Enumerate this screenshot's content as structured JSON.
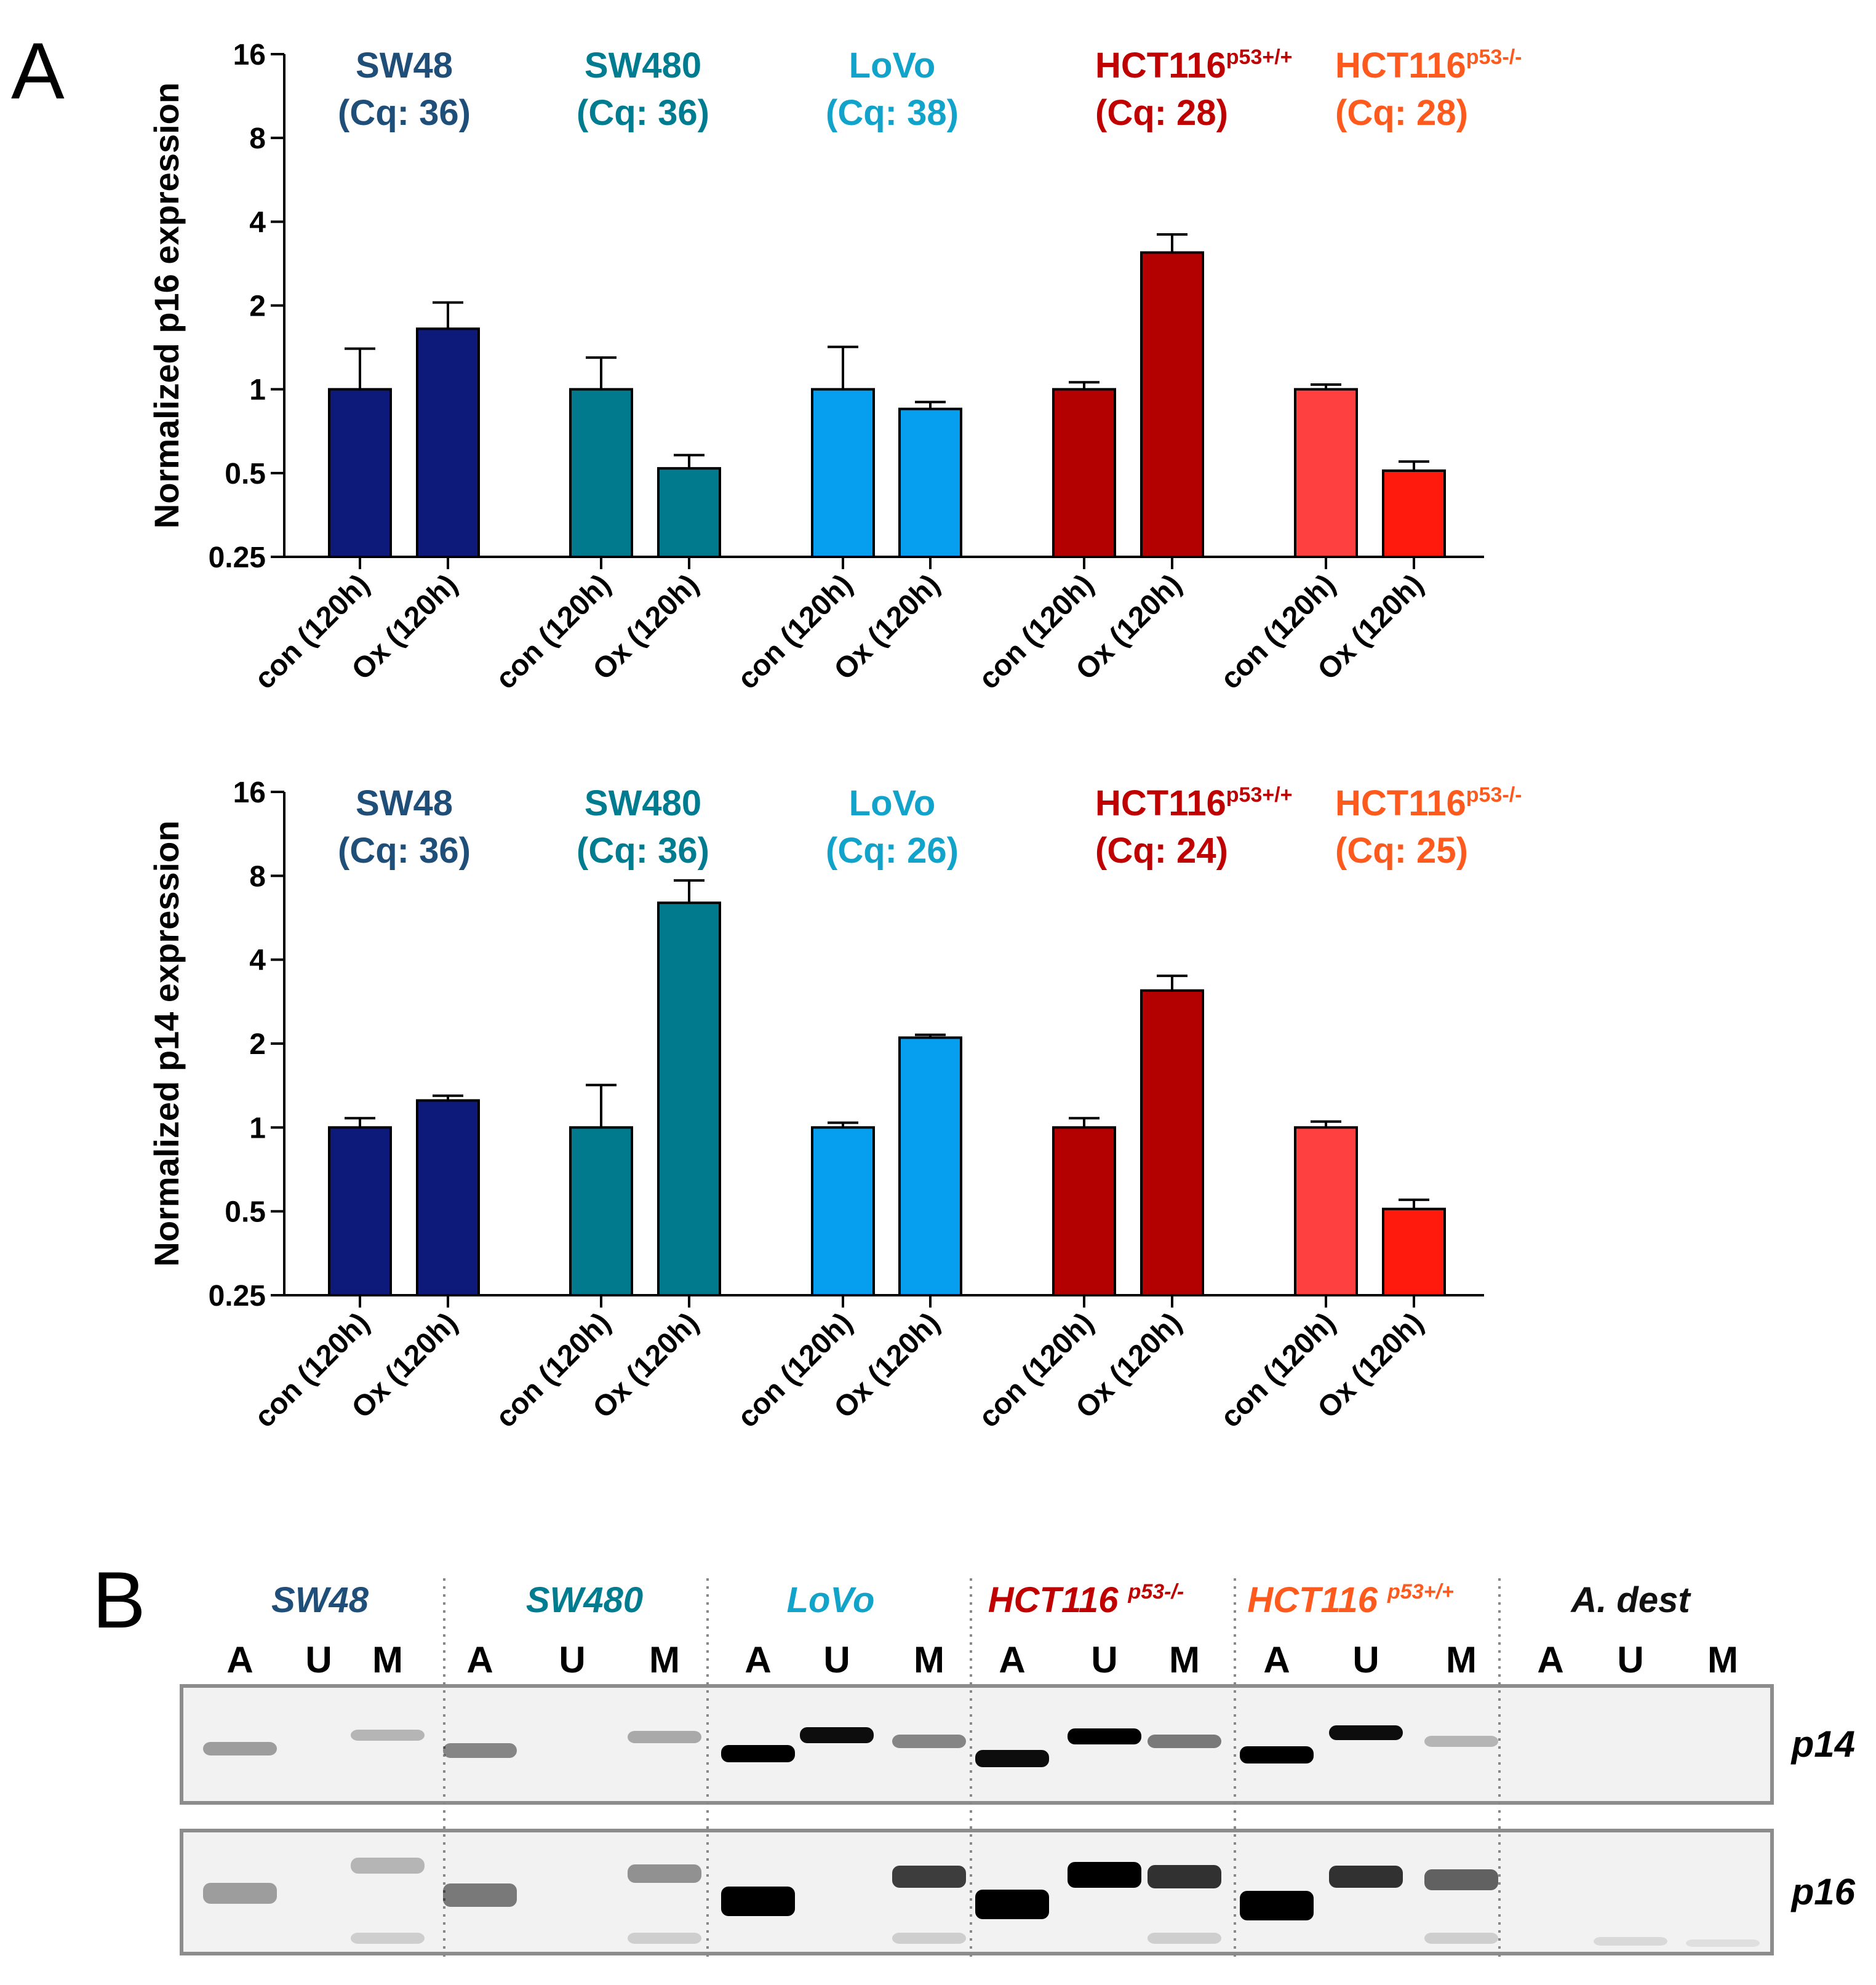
{
  "panel_a_letter": "A",
  "panel_b_letter": "B",
  "colors": {
    "SW48": "#0d1a7a",
    "SW480": "#007a8c",
    "LoVo": "#069ff0",
    "HCT116_wt": "#b30000",
    "HCT116_ko": "#ff4040",
    "HCT116_ko_ox": "#ff1a0d",
    "label_SW48": "#1f4e79",
    "label_SW480": "#007c91",
    "label_LoVo": "#11a3c9",
    "label_HCT_wt": "#c00000",
    "label_HCT_ko": "#ff5a1e"
  },
  "chart_data": [
    {
      "type": "bar",
      "title": "",
      "ylabel": "Normalized p16 expression",
      "yscale": "log2",
      "ylim": [
        0.25,
        16
      ],
      "yticks": [
        "0.25",
        "0.5",
        "1",
        "2",
        "4",
        "8",
        "16"
      ],
      "yticks_values": [
        0.25,
        0.5,
        1,
        2,
        4,
        8,
        16
      ],
      "categories": [
        "con (120h)",
        "Ox (120h)",
        "con (120h)",
        "Ox (120h)",
        "con (120h)",
        "Ox (120h)",
        "con (120h)",
        "Ox (120h)",
        "con (120h)",
        "Ox (120h)"
      ],
      "values": [
        1.0,
        1.65,
        1.0,
        0.52,
        1.0,
        0.85,
        1.0,
        3.1,
        1.0,
        0.51
      ],
      "errors_upper": [
        1.4,
        2.05,
        1.3,
        0.58,
        1.42,
        0.9,
        1.06,
        3.6,
        1.04,
        0.55
      ],
      "group_labels": [
        {
          "name": "SW48",
          "sup": "",
          "cq": "(Cq: 36)"
        },
        {
          "name": "SW480",
          "sup": "",
          "cq": "(Cq: 36)"
        },
        {
          "name": "LoVo",
          "sup": "",
          "cq": "(Cq: 38)"
        },
        {
          "name": "HCT116",
          "sup": "p53+/+",
          "cq": "(Cq: 28)"
        },
        {
          "name": "HCT116",
          "sup": "p53-/-",
          "cq": "(Cq: 28)"
        }
      ]
    },
    {
      "type": "bar",
      "title": "",
      "ylabel": "Normalized p14 expression",
      "yscale": "log2",
      "ylim": [
        0.25,
        16
      ],
      "yticks": [
        "0.25",
        "0.5",
        "1",
        "2",
        "4",
        "8",
        "16"
      ],
      "yticks_values": [
        0.25,
        0.5,
        1,
        2,
        4,
        8,
        16
      ],
      "categories": [
        "con (120h)",
        "Ox (120h)",
        "con (120h)",
        "Ox (120h)",
        "con (120h)",
        "Ox (120h)",
        "con (120h)",
        "Ox (120h)",
        "con (120h)",
        "Ox (120h)"
      ],
      "values": [
        1.0,
        1.25,
        1.0,
        6.4,
        1.0,
        2.1,
        1.0,
        3.1,
        1.0,
        0.51
      ],
      "errors_upper": [
        1.08,
        1.3,
        1.42,
        7.7,
        1.04,
        2.15,
        1.08,
        3.5,
        1.05,
        0.55
      ],
      "group_labels": [
        {
          "name": "SW48",
          "sup": "",
          "cq": "(Cq: 36)"
        },
        {
          "name": "SW480",
          "sup": "",
          "cq": "(Cq: 36)"
        },
        {
          "name": "LoVo",
          "sup": "",
          "cq": "(Cq: 26)"
        },
        {
          "name": "HCT116",
          "sup": "p53+/+",
          "cq": "(Cq: 24)"
        },
        {
          "name": "HCT116",
          "sup": "p53-/-",
          "cq": "(Cq: 25)"
        }
      ]
    }
  ],
  "gel": {
    "groups": [
      {
        "name": "SW48",
        "sup": ""
      },
      {
        "name": "SW480",
        "sup": ""
      },
      {
        "name": "LoVo",
        "sup": ""
      },
      {
        "name": "HCT116 ",
        "sup": "p53-/-"
      },
      {
        "name": "HCT116 ",
        "sup": "p53+/+"
      },
      {
        "name": "A. dest",
        "sup": ""
      }
    ],
    "lanes": [
      "A",
      "U",
      "M",
      "A",
      "U",
      "M",
      "A",
      "U",
      "M",
      "A",
      "U",
      "M",
      "A",
      "U",
      "M",
      "A",
      "U",
      "M"
    ],
    "genes": [
      "p14",
      "p16"
    ]
  }
}
